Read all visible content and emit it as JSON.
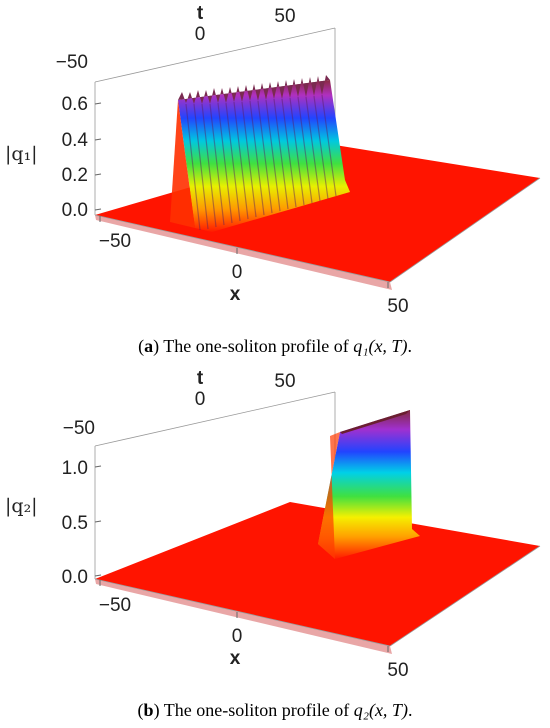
{
  "figure": {
    "panels": [
      {
        "id": "a",
        "caption_letter": "a",
        "caption_text": " The one-soliton profile of ",
        "caption_math": "q₁(x, T)",
        "caption_end": ".",
        "z_label": "|q₁|",
        "x_label": "x",
        "t_label": "t",
        "x_ticks": [
          "−50",
          "0",
          "50"
        ],
        "t_ticks": [
          "−50",
          "0",
          "50"
        ],
        "z_ticks": [
          "0.0",
          "0.2",
          "0.4",
          "0.6"
        ],
        "surface_color": "#ff0000"
      },
      {
        "id": "b",
        "caption_letter": "b",
        "caption_text": " The one-soliton profile of ",
        "caption_math": "q₂(x, T)",
        "caption_end": ".",
        "z_label": "|q₂|",
        "x_label": "x",
        "t_label": "t",
        "x_ticks": [
          "−50",
          "0",
          "50"
        ],
        "t_ticks": [
          "−50",
          "0",
          "50"
        ],
        "z_ticks": [
          "0.0",
          "0.5",
          "1.0"
        ],
        "surface_color": "#ff0000"
      }
    ]
  }
}
